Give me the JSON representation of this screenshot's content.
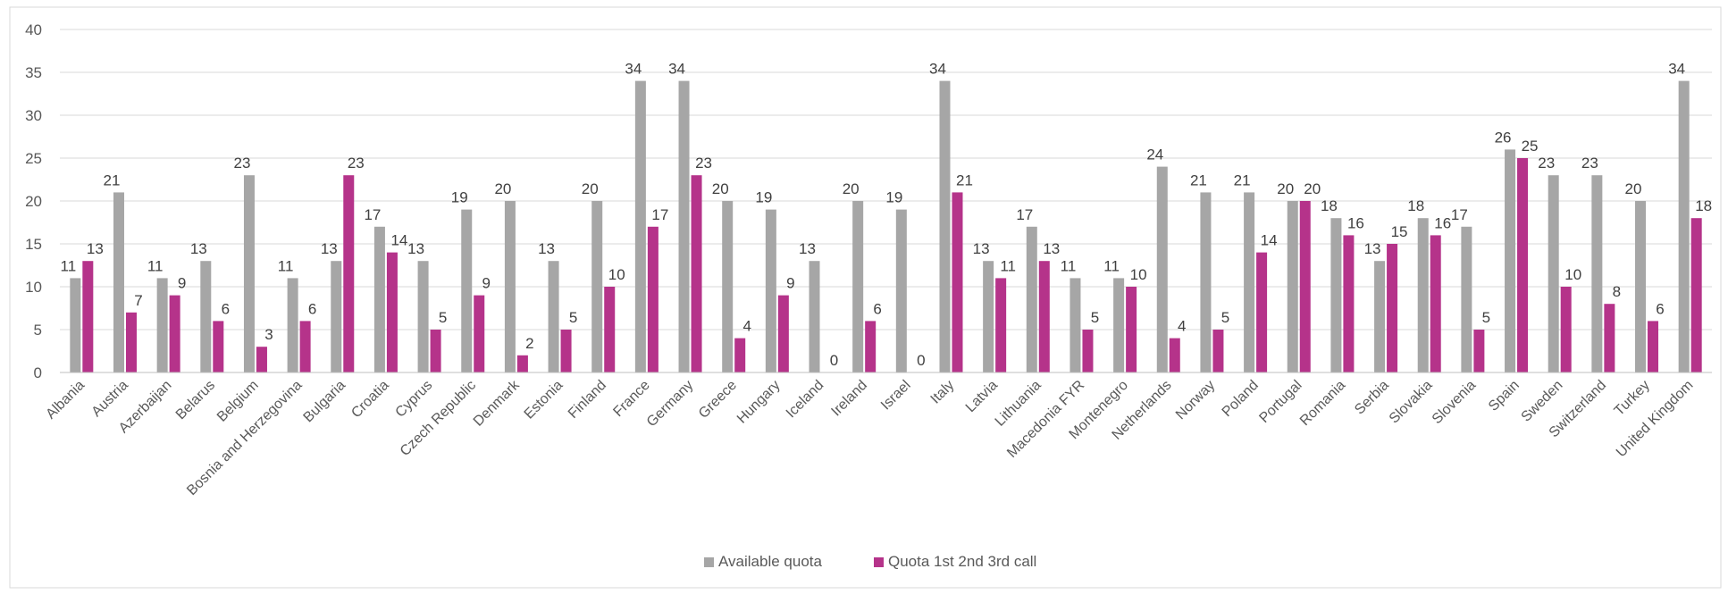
{
  "chart_data": {
    "type": "bar",
    "title": "",
    "xlabel": "",
    "ylabel": "",
    "ylim": [
      0,
      40
    ],
    "yticks": [
      0,
      5,
      10,
      15,
      20,
      25,
      30,
      35,
      40
    ],
    "grid": "horizontal",
    "legend_position": "bottom",
    "categories": [
      "Albania",
      "Austria",
      "Azerbaijan",
      "Belarus",
      "Belgium",
      "Bosnia and Herzegovina",
      "Bulgaria",
      "Croatia",
      "Cyprus",
      "Czech Republic",
      "Denmark",
      "Estonia",
      "Finland",
      "France",
      "Germany",
      "Greece",
      "Hungary",
      "Iceland",
      "Ireland",
      "Israel",
      "Italy",
      "Latvia",
      "Lithuania",
      "Macedonia FYR",
      "Montenegro",
      "Netherlands",
      "Norway",
      "Poland",
      "Portugal",
      "Romania",
      "Serbia",
      "Slovakia",
      "Slovenia",
      "Spain",
      "Sweden",
      "Switzerland",
      "Turkey",
      "United Kingdom"
    ],
    "series": [
      {
        "name": "Available quota",
        "color": "#a6a6a6",
        "values": [
          11,
          21,
          11,
          13,
          23,
          11,
          13,
          17,
          13,
          19,
          20,
          13,
          20,
          34,
          34,
          20,
          19,
          13,
          20,
          19,
          34,
          13,
          17,
          11,
          11,
          24,
          21,
          21,
          20,
          18,
          13,
          18,
          17,
          26,
          23,
          23,
          20,
          34
        ]
      },
      {
        "name": "Quota 1st 2nd 3rd call",
        "color": "#b5338a",
        "values": [
          13,
          7,
          9,
          6,
          3,
          6,
          23,
          14,
          5,
          9,
          2,
          5,
          10,
          17,
          23,
          4,
          9,
          0,
          6,
          0,
          21,
          11,
          13,
          5,
          10,
          4,
          5,
          14,
          20,
          16,
          15,
          16,
          5,
          25,
          10,
          8,
          6,
          18
        ]
      }
    ]
  }
}
